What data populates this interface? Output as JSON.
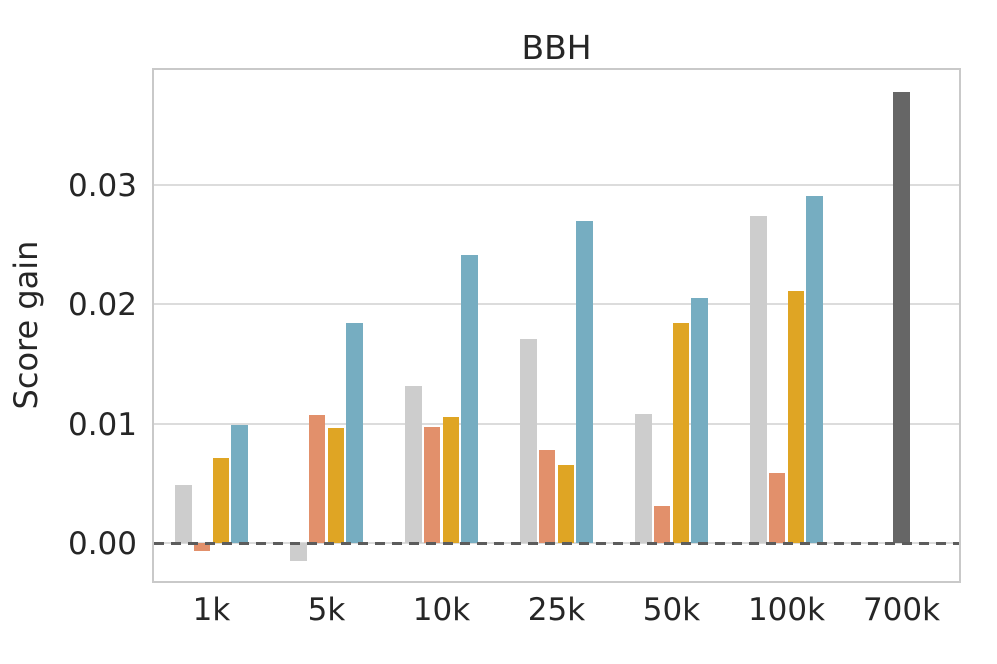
{
  "chart_data": {
    "type": "bar",
    "title": "BBH",
    "xlabel": "",
    "ylabel": "Score gain",
    "categories": [
      "1k",
      "5k",
      "10k",
      "25k",
      "50k",
      "100k",
      "700k"
    ],
    "series": [
      {
        "name": "gray",
        "color": "#cdcdcd",
        "values": [
          0.0049,
          -0.0015,
          0.0132,
          0.0171,
          0.0108,
          0.0274,
          null
        ]
      },
      {
        "name": "orange",
        "color": "#e2906b",
        "values": [
          -0.0007,
          0.0107,
          0.0097,
          0.0078,
          0.0031,
          0.0059,
          null
        ]
      },
      {
        "name": "gold",
        "color": "#dfa524",
        "values": [
          0.0071,
          0.0096,
          0.0106,
          0.0065,
          0.0184,
          0.0211,
          null
        ]
      },
      {
        "name": "blue",
        "color": "#76adc1",
        "values": [
          0.0099,
          0.0184,
          0.0241,
          0.027,
          0.0205,
          0.0291,
          null
        ]
      },
      {
        "name": "dark-gray",
        "color": "#666666",
        "values": [
          null,
          null,
          null,
          null,
          null,
          null,
          0.0378
        ]
      }
    ],
    "ytick_labels": [
      "0.00",
      "0.01",
      "0.02",
      "0.03"
    ],
    "ytick_values": [
      0.0,
      0.01,
      0.02,
      0.03
    ],
    "ylim": [
      -0.0032,
      0.0397
    ],
    "grid": true,
    "legend_position": "none",
    "zero_line": {
      "style": "dashed",
      "color": "#5c5c5c",
      "y": 0.0
    }
  },
  "axes": {
    "grid_color": "#dcdcdc",
    "spine_color": "#c9c9c9",
    "text_color": "#262626"
  }
}
